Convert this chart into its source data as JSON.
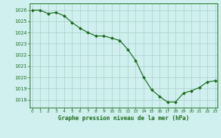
{
  "hours": [
    0,
    1,
    2,
    3,
    4,
    5,
    6,
    7,
    8,
    9,
    10,
    11,
    12,
    13,
    14,
    15,
    16,
    17,
    18,
    19,
    20,
    21,
    22,
    23
  ],
  "pressure": [
    1026.0,
    1026.0,
    1025.7,
    1025.8,
    1025.5,
    1024.9,
    1024.4,
    1024.0,
    1023.7,
    1023.7,
    1023.5,
    1023.3,
    1022.5,
    1021.5,
    1020.0,
    1018.9,
    1018.3,
    1017.8,
    1017.8,
    1018.6,
    1018.8,
    1019.1,
    1019.6,
    1019.7
  ],
  "line_color": "#1a6b1a",
  "marker_color": "#1a6b1a",
  "bg_color": "#cff0ee",
  "grid_color": "#a8ccc8",
  "xlabel": "Graphe pression niveau de la mer (hPa)",
  "xlabel_color": "#1a6b1a",
  "ylabel_ticks": [
    1018,
    1019,
    1020,
    1021,
    1022,
    1023,
    1024,
    1025,
    1026
  ],
  "ylim": [
    1017.3,
    1026.6
  ],
  "xlim": [
    -0.3,
    23.3
  ],
  "tick_color": "#1a6b1a",
  "spine_color": "#1a6b1a"
}
